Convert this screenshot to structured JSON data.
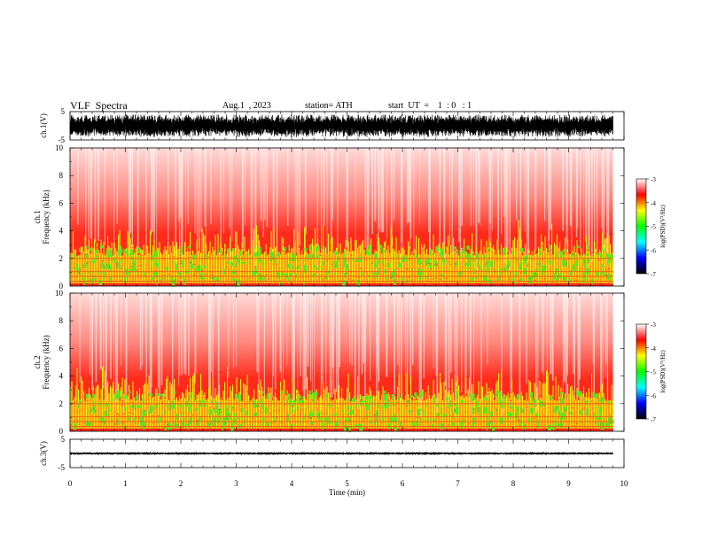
{
  "header": {
    "title": "VLF  Spectra",
    "date": "Aug.1  , 2023",
    "station": "station= ATH",
    "start": "start  UT  =    1  : 0   : 1"
  },
  "colors": {
    "background": "#ffffff",
    "axis": "#000000",
    "waveform": "#000000",
    "colormap": [
      "#ffffff",
      "#ff0000",
      "#ffff00",
      "#00ff00",
      "#00ffff",
      "#0000ff",
      "#000000"
    ]
  },
  "chart_data": [
    {
      "type": "line",
      "panel": "ch1-waveform",
      "ylabel": "ch.1(V)",
      "ylim": [
        -5,
        5
      ],
      "yticks": [
        "5",
        "-5"
      ],
      "xlim": [
        0,
        10
      ],
      "noise_amplitude": 4.0,
      "series": []
    },
    {
      "type": "heatmap",
      "panel": "ch1-spectrogram",
      "ylabel_lines": [
        "ch.1",
        "Frequency  (kHz)"
      ],
      "ylim": [
        0,
        10
      ],
      "yticks": [
        "0",
        "2",
        "4",
        "6",
        "8",
        "10"
      ],
      "xlim": [
        0,
        10
      ],
      "data_end_min": 9.8,
      "colorbar": {
        "label": "log(PSD)(V²/Hz)",
        "range": [
          -7,
          -3
        ],
        "ticks": [
          "-3",
          "-4",
          "-5",
          "-6",
          "-7"
        ]
      }
    },
    {
      "type": "heatmap",
      "panel": "ch2-spectrogram",
      "ylabel_lines": [
        "ch.2",
        "Frequency  (kHz)"
      ],
      "ylim": [
        0,
        10
      ],
      "yticks": [
        "0",
        "2",
        "4",
        "6",
        "8",
        "10"
      ],
      "xlim": [
        0,
        10
      ],
      "data_end_min": 9.8,
      "colorbar": {
        "label": "log(PSD)(V²/Hz)",
        "range": [
          -7,
          -3
        ],
        "ticks": [
          "-3",
          "-4",
          "-5",
          "-6",
          "-7"
        ]
      }
    },
    {
      "type": "line",
      "panel": "ch3-waveform",
      "ylabel": "ch.3(V)",
      "ylim": [
        -5,
        5
      ],
      "yticks": [
        "5",
        "-5"
      ],
      "xlim": [
        0,
        10
      ],
      "noise_amplitude": 0.4,
      "series": []
    }
  ],
  "xaxis": {
    "label": "Time  (min)",
    "ticks": [
      "0",
      "1",
      "2",
      "3",
      "4",
      "5",
      "6",
      "7",
      "8",
      "9",
      "10"
    ]
  }
}
